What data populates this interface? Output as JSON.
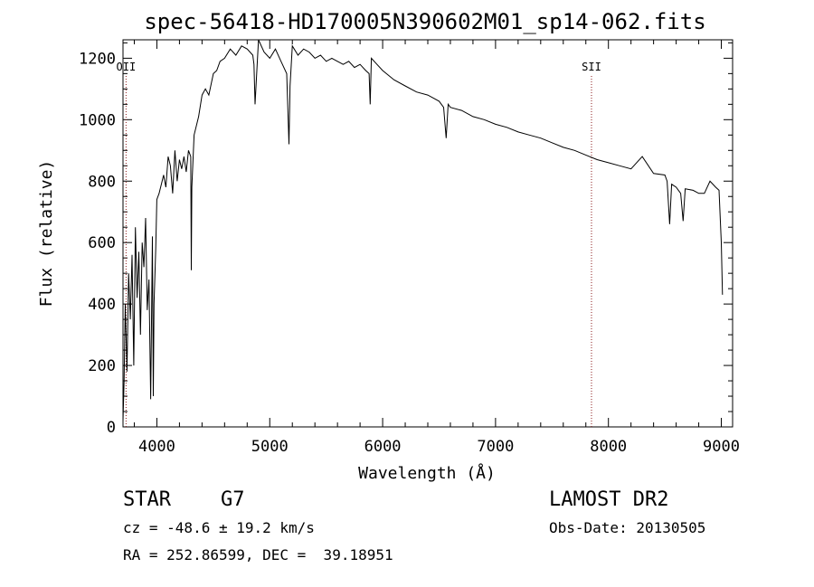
{
  "chart_data": {
    "type": "line",
    "title": "spec-56418-HD170005N390602M01_sp14-062.fits",
    "xlabel": "Wavelength (Å)",
    "ylabel": "Flux (relative)",
    "xlim": [
      3700,
      9100
    ],
    "ylim": [
      0,
      1260
    ],
    "x_ticks": [
      4000,
      5000,
      6000,
      7000,
      8000,
      9000
    ],
    "y_ticks": [
      0,
      200,
      400,
      600,
      800,
      1000,
      1200
    ],
    "grid": false,
    "line_color": "#000000",
    "marker_color": "#8b1a1a",
    "series": [
      {
        "x": [
          3700,
          3710,
          3720,
          3735,
          3750,
          3765,
          3780,
          3795,
          3810,
          3825,
          3840,
          3855,
          3870,
          3885,
          3900,
          3915,
          3930,
          3945,
          3960,
          3968,
          3975,
          3990,
          4000,
          4020,
          4040,
          4060,
          4080,
          4100,
          4120,
          4140,
          4160,
          4180,
          4200,
          4220,
          4240,
          4260,
          4280,
          4300,
          4305,
          4310,
          4330,
          4350,
          4370,
          4400,
          4430,
          4460,
          4500,
          4530,
          4560,
          4600,
          4650,
          4700,
          4750,
          4800,
          4850,
          4860,
          4870,
          4900,
          4950,
          5000,
          5050,
          5100,
          5150,
          5170,
          5180,
          5200,
          5250,
          5300,
          5350,
          5400,
          5450,
          5500,
          5550,
          5600,
          5650,
          5700,
          5750,
          5800,
          5850,
          5880,
          5890,
          5900,
          5950,
          6000,
          6100,
          6200,
          6300,
          6400,
          6500,
          6540,
          6563,
          6580,
          6600,
          6700,
          6800,
          6900,
          7000,
          7100,
          7200,
          7300,
          7400,
          7500,
          7600,
          7700,
          7800,
          7900,
          8000,
          8100,
          8200,
          8300,
          8400,
          8500,
          8520,
          8542,
          8560,
          8600,
          8640,
          8662,
          8680,
          8750,
          8800,
          8850,
          8900,
          8950,
          8980,
          9000,
          9010
        ],
        "values": [
          20,
          150,
          400,
          180,
          500,
          350,
          560,
          200,
          650,
          420,
          570,
          300,
          600,
          520,
          680,
          380,
          480,
          90,
          620,
          100,
          400,
          580,
          740,
          760,
          790,
          820,
          780,
          880,
          850,
          760,
          900,
          800,
          870,
          840,
          880,
          830,
          900,
          880,
          510,
          780,
          950,
          980,
          1010,
          1080,
          1100,
          1080,
          1150,
          1160,
          1190,
          1200,
          1230,
          1210,
          1240,
          1230,
          1210,
          1180,
          1050,
          1260,
          1220,
          1200,
          1230,
          1190,
          1150,
          920,
          1110,
          1240,
          1210,
          1230,
          1220,
          1200,
          1210,
          1190,
          1200,
          1190,
          1180,
          1190,
          1170,
          1180,
          1160,
          1150,
          1050,
          1200,
          1180,
          1160,
          1130,
          1110,
          1090,
          1080,
          1060,
          1040,
          940,
          1050,
          1040,
          1030,
          1010,
          1000,
          985,
          975,
          960,
          950,
          940,
          925,
          910,
          900,
          885,
          870,
          860,
          850,
          840,
          880,
          825,
          820,
          800,
          660,
          790,
          780,
          760,
          670,
          775,
          770,
          760,
          760,
          800,
          780,
          770,
          600,
          430
        ]
      }
    ],
    "line_markers": [
      {
        "label": "OII",
        "x": 3727,
        "style": "dotted"
      },
      {
        "label": "SII",
        "x": 7850,
        "style": "dotted"
      }
    ]
  },
  "info": {
    "class_label": "STAR",
    "subclass": "G7",
    "survey": "LAMOST DR2",
    "cz_text": "cz = -48.6 ± 19.2 km/s",
    "obs_date_text": "Obs-Date: 20130505",
    "coords_text": "RA = 252.86599, DEC =  39.18951"
  }
}
